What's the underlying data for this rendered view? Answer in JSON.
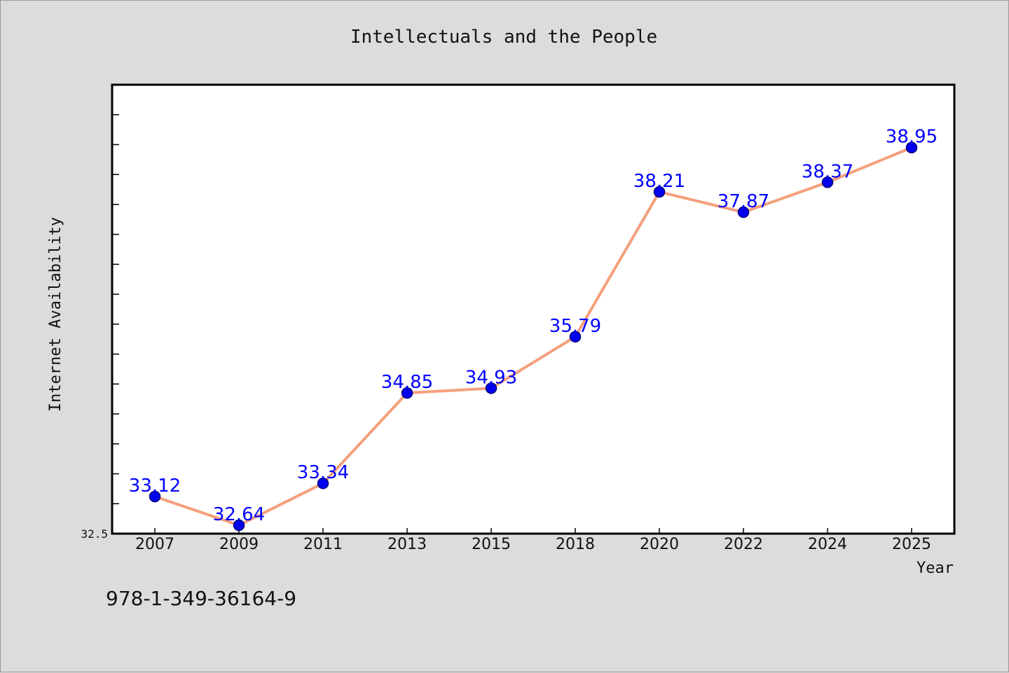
{
  "chart_data": {
    "type": "line",
    "title": "Intellectuals and the People",
    "xlabel": "Year",
    "ylabel": "Internet Availability",
    "categories": [
      "2007",
      "2009",
      "2011",
      "2013",
      "2015",
      "2018",
      "2020",
      "2022",
      "2024",
      "2025"
    ],
    "series": [
      {
        "values": [
          33.12,
          32.64,
          33.34,
          34.85,
          34.93,
          35.79,
          38.21,
          37.87,
          38.37,
          38.95
        ],
        "labels": [
          "33.12",
          "32.64",
          "33.34",
          "34.85",
          "34.93",
          "35.79",
          "38.21",
          "37.87",
          "38.37",
          "38.95"
        ]
      }
    ],
    "ylim": [
      32.5,
      40.0
    ],
    "yticks": [
      "32.5"
    ],
    "grid": false,
    "legend": "none",
    "colors": {
      "line": "#f4a07c",
      "marker": "#0000ee",
      "label": "#0000ff",
      "plot_bg": "#ffffff",
      "page_bg": "#dcdcdc"
    }
  },
  "footer": {
    "isbn": "978-1-349-36164-9"
  }
}
